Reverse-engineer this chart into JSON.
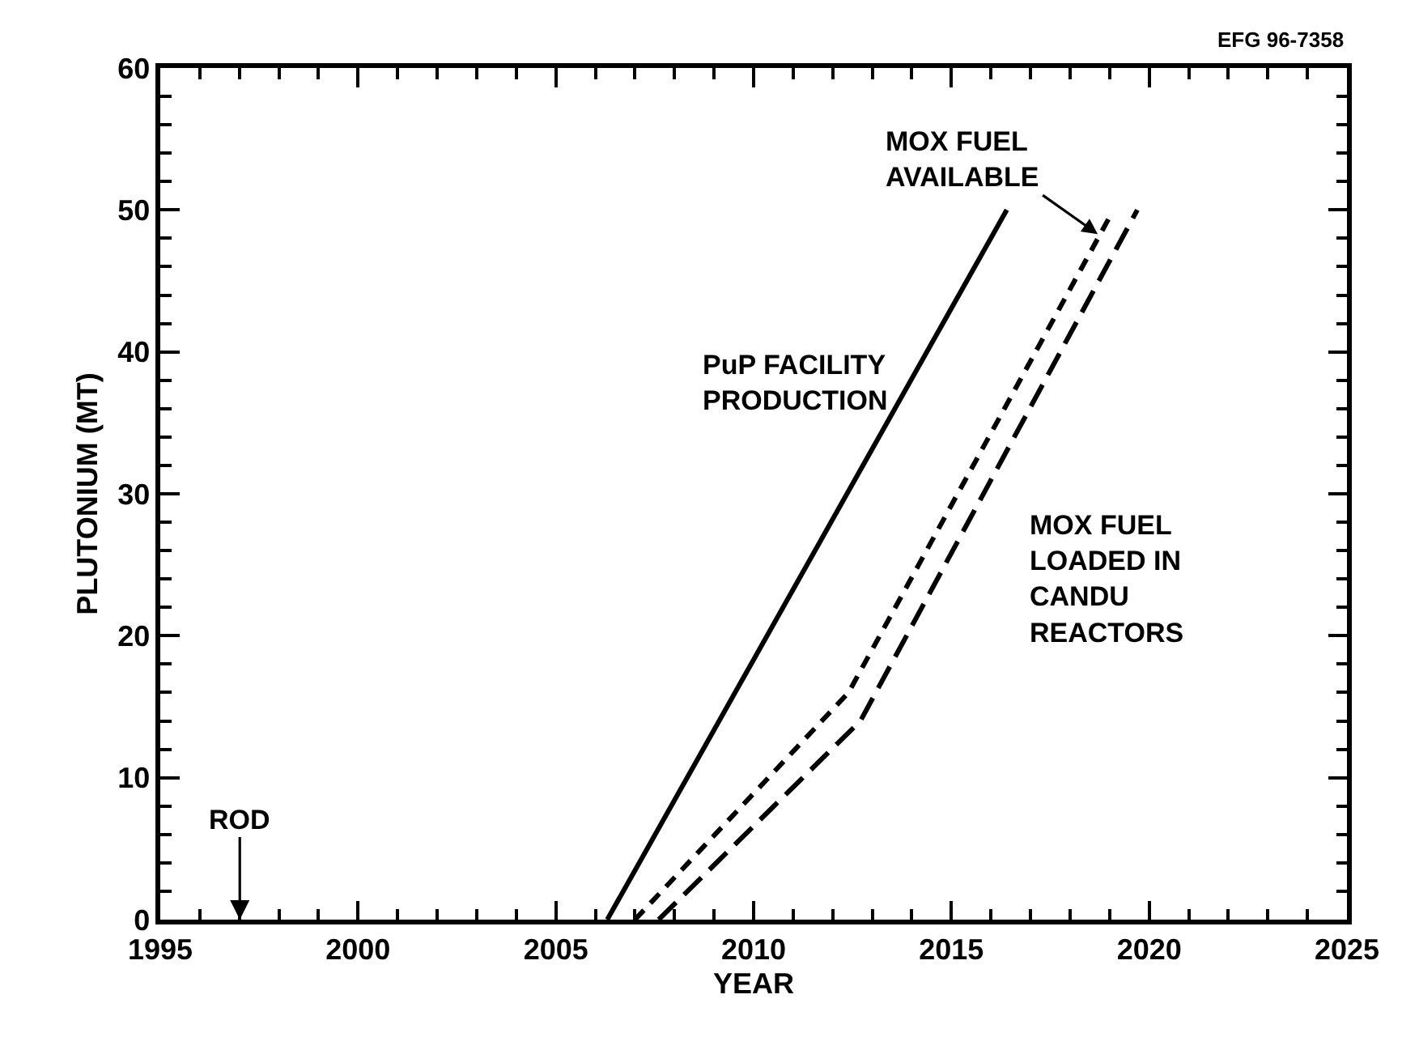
{
  "chart_data": {
    "type": "line",
    "xlabel": "YEAR",
    "ylabel": "PLUTONIUM (MT)",
    "xlim": [
      1995,
      2025
    ],
    "xticks": [
      1995,
      2000,
      2005,
      2010,
      2015,
      2020,
      2025
    ],
    "ylim": [
      0,
      60
    ],
    "yticks": [
      0,
      10,
      20,
      30,
      40,
      50,
      60
    ],
    "legend": false,
    "marker": "none",
    "series": [
      {
        "name": "PuP FACILITY PRODUCTION",
        "color": "#000000",
        "line_style": "solid",
        "x": [
          2006.3,
          2016.4
        ],
        "values": [
          0,
          50
        ]
      },
      {
        "name": "MOX FUEL AVAILABLE",
        "color": "#000000",
        "line_style": "dotted",
        "x": [
          2007.0,
          2012.4,
          2019.0
        ],
        "values": [
          0,
          16,
          49.5
        ]
      },
      {
        "name": "MOX FUEL LOADED IN CANDU REACTORS",
        "color": "#000000",
        "line_style": "dashed",
        "x": [
          2007.6,
          2012.7,
          2019.7
        ],
        "values": [
          0,
          14,
          50
        ]
      }
    ],
    "annotations": [
      "EFG 96-7358",
      "ROD"
    ]
  }
}
